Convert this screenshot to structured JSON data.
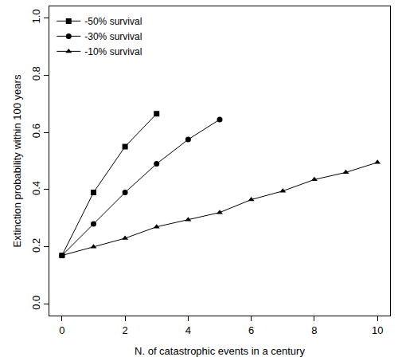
{
  "chart_data": {
    "type": "line",
    "x_label": "N. of catastrophic events in a century",
    "y_label": "Extinction probability within 100 years",
    "series": [
      {
        "name": "-50% survival",
        "color": "#000000",
        "marker": "square",
        "line_style": "solid",
        "x": [
          0,
          1,
          2,
          3
        ],
        "values": [
          0.17,
          0.39,
          0.55,
          0.665
        ]
      },
      {
        "name": "-30% survival",
        "color": "#000000",
        "marker": "circle",
        "line_style": "solid",
        "x": [
          0,
          1,
          2,
          3,
          4,
          5
        ],
        "values": [
          0.17,
          0.28,
          0.39,
          0.49,
          0.575,
          0.645
        ]
      },
      {
        "name": "-10% survival",
        "color": "#000000",
        "marker": "triangle",
        "line_style": "solid",
        "x": [
          0,
          1,
          2,
          3,
          4,
          5,
          6,
          7,
          8,
          9,
          10
        ],
        "values": [
          0.17,
          0.2,
          0.23,
          0.27,
          0.295,
          0.32,
          0.365,
          0.395,
          0.435,
          0.46,
          0.495
        ]
      }
    ],
    "xlim": [
      -0.4,
      10.4
    ],
    "xticks": [
      0,
      2,
      4,
      6,
      8,
      10
    ],
    "ylim": [
      -0.04,
      1.04
    ],
    "yticks": [
      {
        "value": 0,
        "label": "0.0"
      },
      {
        "value": 0.2,
        "label": "0.2"
      },
      {
        "value": 0.4,
        "label": "0.4"
      },
      {
        "value": 0.6,
        "label": "0.6"
      },
      {
        "value": 0.8,
        "label": "0.8"
      },
      {
        "value": 1,
        "label": "1.0"
      }
    ],
    "grid": false,
    "legend": "upper left"
  }
}
